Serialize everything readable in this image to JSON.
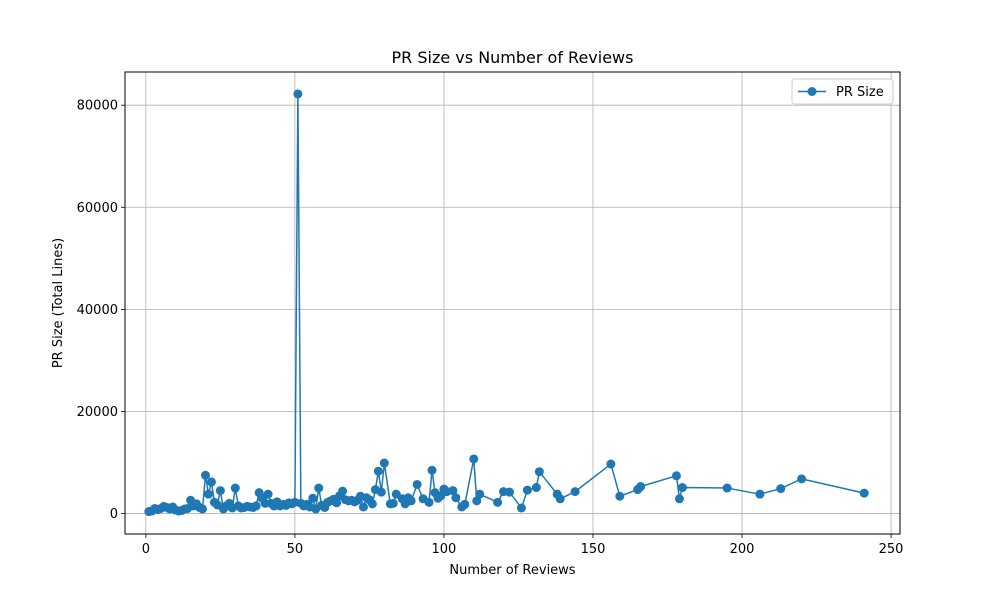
{
  "chart_data": {
    "type": "line",
    "title": "PR Size vs Number of Reviews",
    "xlabel": "Number of Reviews",
    "ylabel": "PR Size (Total Lines)",
    "xlim": [
      -7,
      253
    ],
    "ylim": [
      -4000,
      86500
    ],
    "xticks": [
      0,
      50,
      100,
      150,
      200,
      250
    ],
    "yticks": [
      0,
      20000,
      40000,
      60000,
      80000
    ],
    "grid": true,
    "legend_position": "top-right",
    "marker": "circle",
    "color": "#1f77b4",
    "series": [
      {
        "name": "PR Size",
        "points": [
          [
            1,
            400
          ],
          [
            2,
            500
          ],
          [
            3,
            1000
          ],
          [
            4,
            800
          ],
          [
            5,
            1000
          ],
          [
            6,
            1400
          ],
          [
            7,
            1200
          ],
          [
            8,
            900
          ],
          [
            9,
            1300
          ],
          [
            10,
            700
          ],
          [
            11,
            500
          ],
          [
            12,
            600
          ],
          [
            13,
            900
          ],
          [
            14,
            1000
          ],
          [
            15,
            2600
          ],
          [
            16,
            1500
          ],
          [
            17,
            1900
          ],
          [
            18,
            1200
          ],
          [
            19,
            900
          ],
          [
            20,
            7500
          ],
          [
            21,
            3800
          ],
          [
            22,
            6200
          ],
          [
            23,
            2200
          ],
          [
            24,
            1700
          ],
          [
            25,
            4500
          ],
          [
            26,
            900
          ],
          [
            27,
            1500
          ],
          [
            28,
            2000
          ],
          [
            29,
            1100
          ],
          [
            30,
            5000
          ],
          [
            31,
            1500
          ],
          [
            32,
            1100
          ],
          [
            33,
            1200
          ],
          [
            34,
            1400
          ],
          [
            35,
            1300
          ],
          [
            36,
            1200
          ],
          [
            37,
            1500
          ],
          [
            38,
            4100
          ],
          [
            39,
            3000
          ],
          [
            40,
            2000
          ],
          [
            41,
            3800
          ],
          [
            42,
            2000
          ],
          [
            43,
            1500
          ],
          [
            44,
            2300
          ],
          [
            45,
            1500
          ],
          [
            46,
            1800
          ],
          [
            47,
            1600
          ],
          [
            48,
            2100
          ],
          [
            49,
            1900
          ],
          [
            50,
            2200
          ],
          [
            51,
            82200
          ],
          [
            52,
            2000
          ],
          [
            53,
            1500
          ],
          [
            54,
            1800
          ],
          [
            55,
            1300
          ],
          [
            56,
            3000
          ],
          [
            57,
            900
          ],
          [
            58,
            5000
          ],
          [
            59,
            1600
          ],
          [
            60,
            1200
          ],
          [
            61,
            2200
          ],
          [
            62,
            2500
          ],
          [
            63,
            2800
          ],
          [
            64,
            2100
          ],
          [
            65,
            3500
          ],
          [
            66,
            4400
          ],
          [
            67,
            2700
          ],
          [
            68,
            2500
          ],
          [
            69,
            2600
          ],
          [
            70,
            2300
          ],
          [
            71,
            2600
          ],
          [
            72,
            3400
          ],
          [
            73,
            1300
          ],
          [
            74,
            3100
          ],
          [
            75,
            2700
          ],
          [
            76,
            1900
          ],
          [
            77,
            4700
          ],
          [
            78,
            8300
          ],
          [
            79,
            4200
          ],
          [
            80,
            9900
          ],
          [
            82,
            1900
          ],
          [
            83,
            2000
          ],
          [
            84,
            3800
          ],
          [
            86,
            2900
          ],
          [
            87,
            1900
          ],
          [
            88,
            3100
          ],
          [
            89,
            2500
          ],
          [
            91,
            5700
          ],
          [
            93,
            2900
          ],
          [
            95,
            2200
          ],
          [
            96,
            8500
          ],
          [
            97,
            4100
          ],
          [
            98,
            3000
          ],
          [
            99,
            3500
          ],
          [
            100,
            4800
          ],
          [
            101,
            4300
          ],
          [
            103,
            4500
          ],
          [
            104,
            3100
          ],
          [
            106,
            1300
          ],
          [
            107,
            1800
          ],
          [
            110,
            10700
          ],
          [
            111,
            2500
          ],
          [
            112,
            3800
          ],
          [
            118,
            2200
          ],
          [
            120,
            4300
          ],
          [
            122,
            4200
          ],
          [
            126,
            1100
          ],
          [
            128,
            4600
          ],
          [
            131,
            5100
          ],
          [
            132,
            8200
          ],
          [
            138,
            3800
          ],
          [
            139,
            2900
          ],
          [
            144,
            4300
          ],
          [
            156,
            9700
          ],
          [
            159,
            3400
          ],
          [
            165,
            4700
          ],
          [
            166,
            5300
          ],
          [
            178,
            7400
          ],
          [
            179,
            2900
          ],
          [
            180,
            5100
          ],
          [
            195,
            5000
          ],
          [
            206,
            3800
          ],
          [
            213,
            4900
          ],
          [
            220,
            6800
          ],
          [
            241,
            4000
          ]
        ]
      }
    ]
  }
}
